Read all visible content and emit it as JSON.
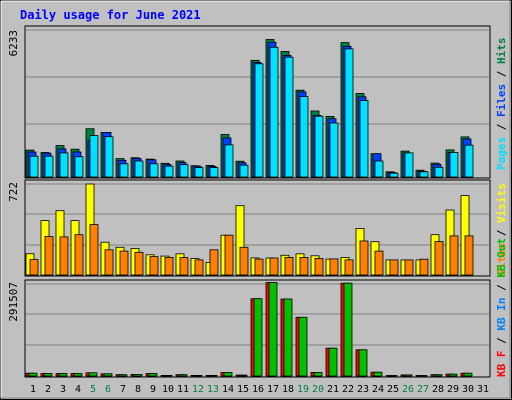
{
  "title": "Daily usage for June 2021",
  "colors": {
    "background": "#c0c0c0",
    "plot": "#c0c0c0",
    "grid": "#808080",
    "title": "#0000ff",
    "hits": "#008040",
    "files": "#0040ff",
    "pages": "#00e0ff",
    "visits": "#ffff00",
    "sites": "#ff8000",
    "kbytes_out": "#00c000",
    "kbytes_in": "#0080ff",
    "kbytes": "#ff0000",
    "weekday_label": "#000000",
    "weekend_label": "#008040"
  },
  "chart_data": [
    {
      "type": "bar",
      "panel": "hits-files-pages",
      "y_max_label": "6233",
      "ylim": [
        0,
        6233
      ],
      "legend": [
        "Hits",
        "Files",
        "Pages"
      ],
      "categories": [
        "1",
        "2",
        "3",
        "4",
        "5",
        "6",
        "7",
        "8",
        "9",
        "10",
        "11",
        "12",
        "13",
        "14",
        "15",
        "16",
        "17",
        "18",
        "19",
        "20",
        "21",
        "22",
        "23",
        "24",
        "25",
        "26",
        "27",
        "28",
        "29",
        "30",
        "31"
      ],
      "weekend_days": [
        "5",
        "6",
        "12",
        "13",
        "19",
        "20",
        "26",
        "27"
      ],
      "series": [
        {
          "name": "Hits",
          "values": [
            1140,
            1040,
            1330,
            1180,
            2050,
            1890,
            780,
            820,
            760,
            580,
            680,
            480,
            490,
            1800,
            670,
            4950,
            5830,
            5320,
            3680,
            2800,
            2570,
            5700,
            3540,
            990,
            220,
            1100,
            290,
            590,
            1150,
            1700,
            0
          ]
        },
        {
          "name": "Files",
          "values": [
            1060,
            1010,
            1190,
            1060,
            1560,
            1890,
            710,
            790,
            730,
            530,
            610,
            460,
            450,
            1660,
            600,
            4860,
            5710,
            5160,
            3610,
            2610,
            2470,
            5540,
            3400,
            990,
            190,
            1020,
            240,
            540,
            1040,
            1610,
            0
          ]
        },
        {
          "name": "Pages",
          "values": [
            880,
            880,
            1020,
            860,
            1760,
            1710,
            560,
            680,
            560,
            460,
            520,
            400,
            400,
            1360,
            500,
            4800,
            5500,
            5080,
            3410,
            2580,
            2290,
            5430,
            3240,
            680,
            160,
            1020,
            220,
            410,
            1040,
            1350,
            0
          ]
        }
      ]
    },
    {
      "type": "bar",
      "panel": "visits-sites",
      "y_max_label": "722",
      "ylim": [
        0,
        722
      ],
      "legend": [
        "Visits",
        "Sites"
      ],
      "categories": [
        "1",
        "2",
        "3",
        "4",
        "5",
        "6",
        "7",
        "8",
        "9",
        "10",
        "11",
        "12",
        "13",
        "14",
        "15",
        "16",
        "17",
        "18",
        "19",
        "20",
        "21",
        "22",
        "23",
        "24",
        "25",
        "26",
        "27",
        "28",
        "29",
        "30",
        "31"
      ],
      "series": [
        {
          "name": "Visits",
          "values": [
            168,
            432,
            510,
            432,
            722,
            260,
            220,
            210,
            160,
            150,
            168,
            130,
            100,
            316,
            550,
            136,
            135,
            156,
            168,
            152,
            126,
            140,
            370,
            264,
            120,
            120,
            120,
            320,
            516,
            630,
            0
          ]
        },
        {
          "name": "Sites",
          "values": [
            122,
            305,
            302,
            320,
            400,
            200,
            190,
            180,
            146,
            140,
            138,
            120,
            200,
            316,
            220,
            126,
            135,
            140,
            140,
            132,
            128,
            120,
            270,
            190,
            120,
            120,
            125,
            265,
            310,
            310,
            0
          ]
        }
      ]
    },
    {
      "type": "bar",
      "panel": "kbytes",
      "y_max_label": "291507",
      "ylim": [
        0,
        291507
      ],
      "legend": [
        "KB F",
        "KB In",
        "KB Out"
      ],
      "categories": [
        "1",
        "2",
        "3",
        "4",
        "5",
        "6",
        "7",
        "8",
        "9",
        "10",
        "11",
        "12",
        "13",
        "14",
        "15",
        "16",
        "17",
        "18",
        "19",
        "20",
        "21",
        "22",
        "23",
        "24",
        "25",
        "26",
        "27",
        "28",
        "29",
        "30",
        "31"
      ],
      "series": [
        {
          "name": "KB F",
          "values": [
            9000,
            8000,
            8000,
            8000,
            10000,
            7000,
            4000,
            5000,
            8000,
            2000,
            4000,
            2000,
            2000,
            11000,
            3000,
            245000,
            296000,
            244000,
            186000,
            11000,
            88000,
            294000,
            83000,
            12000,
            1500,
            3500,
            1500,
            4000,
            6000,
            9000,
            0
          ]
        },
        {
          "name": "KB Out",
          "values": [
            9000,
            8000,
            8000,
            8000,
            10000,
            7000,
            4000,
            5000,
            8000,
            2000,
            4000,
            2000,
            2000,
            11000,
            3000,
            245000,
            296000,
            244000,
            186000,
            11000,
            88000,
            294000,
            83000,
            12000,
            1500,
            3500,
            1500,
            4000,
            6000,
            9000,
            0
          ]
        }
      ]
    }
  ],
  "right_labels": {
    "top": [
      {
        "text": "Pages",
        "color": "#00e0ff"
      },
      {
        "text": " / ",
        "color": "#000000"
      },
      {
        "text": "Files",
        "color": "#0040ff"
      },
      {
        "text": " / ",
        "color": "#000000"
      },
      {
        "text": "Hits",
        "color": "#008040"
      }
    ],
    "middle": [
      {
        "text": "Sites",
        "color": "#ff8000"
      },
      {
        "text": " / ",
        "color": "#000000"
      },
      {
        "text": "Visits",
        "color": "#ffff00"
      }
    ],
    "bottom": [
      {
        "text": "KB F",
        "color": "#ff0000"
      },
      {
        "text": " / ",
        "color": "#000000"
      },
      {
        "text": "KB In",
        "color": "#0080ff"
      },
      {
        "text": " / ",
        "color": "#000000"
      },
      {
        "text": "KB Out",
        "color": "#00c000"
      }
    ]
  }
}
